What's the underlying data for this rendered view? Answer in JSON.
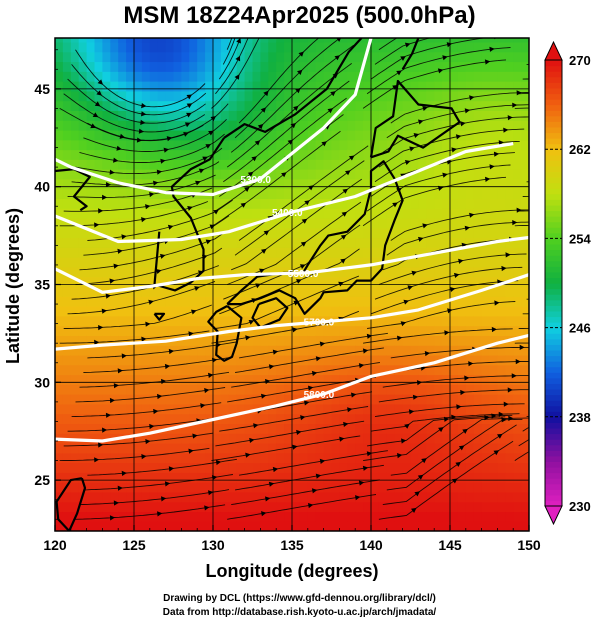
{
  "chart_data": {
    "type": "heatmap",
    "title": "MSM 18Z24Apr2025 (500.0hPa)",
    "xlabel": "Longitude (degrees)",
    "ylabel": "Latitude  (degrees)",
    "xlim": [
      120,
      150
    ],
    "ylim": [
      22.4,
      47.6
    ],
    "x_ticks": [
      120,
      125,
      130,
      135,
      140,
      145,
      150
    ],
    "y_ticks": [
      25,
      30,
      35,
      40,
      45
    ],
    "colorbar": {
      "min": 230,
      "max": 270,
      "ticks": [
        230,
        238,
        246,
        254,
        262,
        270
      ],
      "colors": [
        "#e020c0",
        "#9010a0",
        "#1010a0",
        "#1060e0",
        "#10d0e0",
        "#10b040",
        "#50d020",
        "#c0e010",
        "#f0c010",
        "#f06010",
        "#e01010"
      ]
    },
    "contours": [
      {
        "label": "5400.0",
        "points": [
          [
            120,
            38.5
          ],
          [
            124,
            37.2
          ],
          [
            128,
            37.3
          ],
          [
            131,
            37.7
          ],
          [
            135,
            38.7
          ],
          [
            139,
            39.5
          ],
          [
            143,
            40.8
          ],
          [
            146,
            41.8
          ],
          [
            149,
            42.2
          ]
        ]
      },
      {
        "label": "5500.0",
        "points": [
          [
            120,
            35.8
          ],
          [
            123,
            34.6
          ],
          [
            126,
            34.9
          ],
          [
            129,
            35.3
          ],
          [
            132,
            35.5
          ],
          [
            136,
            35.6
          ],
          [
            140,
            36.0
          ],
          [
            144,
            36.6
          ],
          [
            148,
            37.2
          ],
          [
            150,
            37.4
          ]
        ]
      },
      {
        "label": "5700.0",
        "points": [
          [
            120,
            31.7
          ],
          [
            123,
            31.9
          ],
          [
            127,
            32.1
          ],
          [
            131,
            32.6
          ],
          [
            134,
            32.9
          ],
          [
            137,
            33.1
          ],
          [
            140,
            33.3
          ],
          [
            143,
            33.7
          ],
          [
            147,
            34.7
          ],
          [
            150,
            35.5
          ]
        ]
      },
      {
        "label": "5800.0",
        "points": [
          [
            120,
            27.1
          ],
          [
            123,
            27.0
          ],
          [
            126,
            27.4
          ],
          [
            130,
            28.1
          ],
          [
            134,
            28.8
          ],
          [
            137,
            29.4
          ],
          [
            140,
            30.3
          ],
          [
            144,
            31.0
          ],
          [
            148,
            32.0
          ],
          [
            150,
            32.4
          ]
        ]
      },
      {
        "label": "5300.0",
        "points": [
          [
            120,
            41.4
          ],
          [
            121,
            41.0
          ],
          [
            124,
            40.2
          ],
          [
            127,
            39.7
          ],
          [
            130,
            39.6
          ],
          [
            133,
            40.4
          ],
          [
            135,
            41.7
          ],
          [
            137,
            43.0
          ],
          [
            139,
            44.7
          ],
          [
            140,
            47.6
          ]
        ]
      }
    ]
  },
  "credit": {
    "line1": "Drawing by DCL (https://www.gfd-dennou.org/library/dcl/)",
    "line2": "Data from http://database.rish.kyoto-u.ac.jp/arch/jmadata/"
  }
}
